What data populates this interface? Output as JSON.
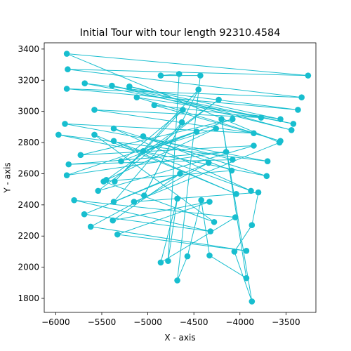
{
  "chart_data": {
    "type": "line",
    "title": "Initial Tour with tour length 92310.4584",
    "xlabel": "X - axis",
    "ylabel": "Y - axis",
    "xlim": [
      -6125,
      -3175
    ],
    "ylim": [
      1710,
      3440
    ],
    "xticks": [
      -6000,
      -5500,
      -5000,
      -4500,
      -4000,
      -3500
    ],
    "xtick_labels": [
      "−6000",
      "−5500",
      "−5000",
      "−4500",
      "−4000",
      "−3500"
    ],
    "yticks": [
      1800,
      2000,
      2200,
      2400,
      2600,
      2800,
      3000,
      3200,
      3400
    ],
    "ytick_labels": [
      "1800",
      "2000",
      "2200",
      "2400",
      "2600",
      "2800",
      "3000",
      "3200",
      "3400"
    ],
    "grid": false,
    "color": "#17becf",
    "series": [
      {
        "closed": true,
        "points": [
          [
            -5880,
            3370
          ],
          [
            -3260,
            3230
          ],
          [
            -5870,
            3270
          ],
          [
            -3330,
            3090
          ],
          [
            -5880,
            3145
          ],
          [
            -3370,
            3010
          ],
          [
            -5685,
            3180
          ],
          [
            -3420,
            2920
          ],
          [
            -5390,
            3165
          ],
          [
            -3440,
            2880
          ],
          [
            -5200,
            3160
          ],
          [
            -3560,
            2950
          ],
          [
            -5120,
            3090
          ],
          [
            -3560,
            2810
          ],
          [
            -4930,
            3040
          ],
          [
            -3770,
            2960
          ],
          [
            -5580,
            3010
          ],
          [
            -3850,
            2860
          ],
          [
            -5900,
            2920
          ],
          [
            -3700,
            2680
          ],
          [
            -5970,
            2850
          ],
          [
            -3710,
            2585
          ],
          [
            -5370,
            2890
          ],
          [
            -3880,
            2490
          ],
          [
            -5370,
            2810
          ],
          [
            -4040,
            2470
          ],
          [
            -5580,
            2850
          ],
          [
            -4280,
            2290
          ],
          [
            -5480,
            2550
          ],
          [
            -4090,
            2620
          ],
          [
            -5050,
            2840
          ],
          [
            -4080,
            2690
          ],
          [
            -5860,
            2660
          ],
          [
            -4150,
            2740
          ],
          [
            -5880,
            2590
          ],
          [
            -4080,
            2950
          ],
          [
            -5730,
            2720
          ],
          [
            -3850,
            2780
          ],
          [
            -5540,
            2490
          ],
          [
            -4230,
            3075
          ],
          [
            -5450,
            2560
          ],
          [
            -4260,
            2890
          ],
          [
            -5050,
            2745
          ],
          [
            -4470,
            2870
          ],
          [
            -5290,
            2680
          ],
          [
            -4620,
            3010
          ],
          [
            -5360,
            2550
          ],
          [
            -4450,
            3140
          ],
          [
            -5040,
            2460
          ],
          [
            -4630,
            2930
          ],
          [
            -5370,
            2420
          ],
          [
            -4650,
            2600
          ],
          [
            -5380,
            2300
          ],
          [
            -4330,
            2420
          ],
          [
            -5330,
            2210
          ],
          [
            -3930,
            2105
          ],
          [
            -5620,
            2260
          ],
          [
            -4340,
            2670
          ],
          [
            -5690,
            2340
          ],
          [
            -4320,
            2230
          ],
          [
            -5800,
            2430
          ],
          [
            -4050,
            2320
          ],
          [
            -4860,
            2030
          ],
          [
            -4680,
            2440
          ],
          [
            -4780,
            2040
          ],
          [
            -4660,
            3240
          ],
          [
            -4860,
            3230
          ],
          [
            -4430,
            3230
          ],
          [
            -4680,
            1915
          ],
          [
            -4570,
            2070
          ],
          [
            -4420,
            2430
          ],
          [
            -4330,
            2075
          ],
          [
            -3930,
            1930
          ],
          [
            -4200,
            2950
          ],
          [
            -3870,
            1780
          ],
          [
            -4060,
            2100
          ],
          [
            -3870,
            2270
          ],
          [
            -3800,
            2480
          ],
          [
            -5150,
            2420
          ],
          [
            -3570,
            2800
          ]
        ]
      }
    ]
  }
}
